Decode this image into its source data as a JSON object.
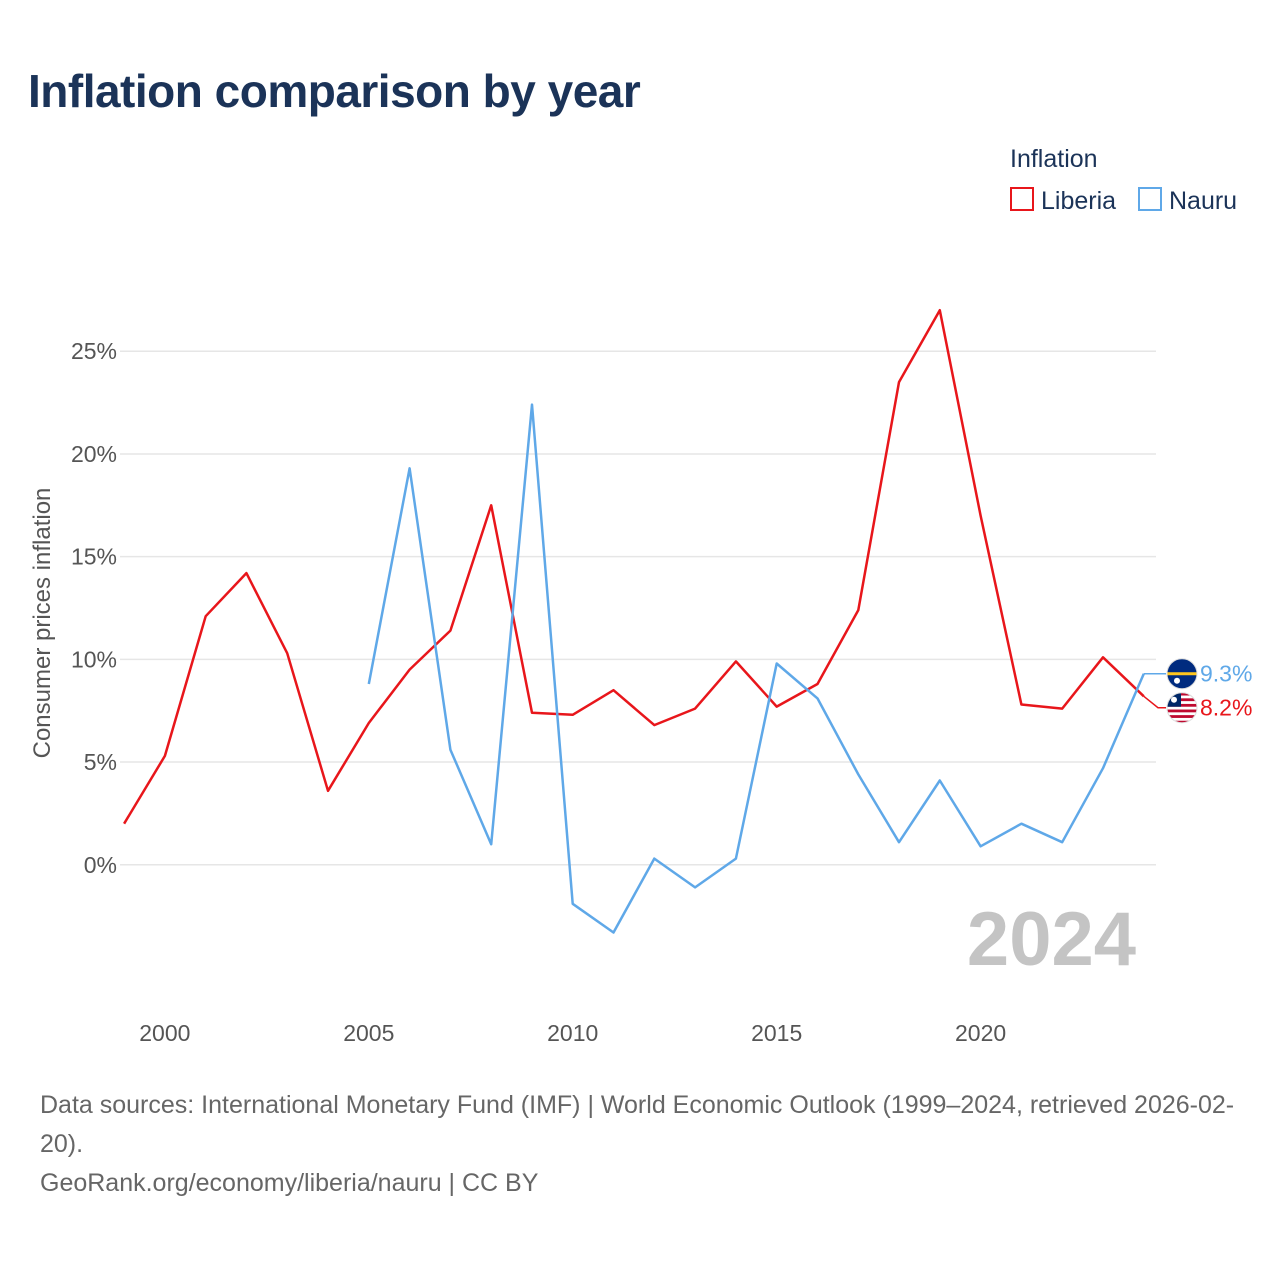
{
  "title": "Inflation comparison by year",
  "chart_data": {
    "type": "line",
    "title": "Inflation comparison by year",
    "xlabel": "",
    "ylabel": "Consumer prices inflation",
    "x": [
      1999,
      2000,
      2001,
      2002,
      2003,
      2004,
      2005,
      2006,
      2007,
      2008,
      2009,
      2010,
      2011,
      2012,
      2013,
      2014,
      2015,
      2016,
      2017,
      2018,
      2019,
      2020,
      2021,
      2022,
      2023,
      2024
    ],
    "xlim": [
      1998.9,
      2024.3
    ],
    "ylim": [
      -6,
      31
    ],
    "x_ticks": [
      2000,
      2005,
      2010,
      2015,
      2020
    ],
    "y_ticks": [
      0,
      5,
      10,
      15,
      20,
      25
    ],
    "y_tick_labels": [
      "0%",
      "5%",
      "10%",
      "15%",
      "20%",
      "25%"
    ],
    "grid": true,
    "legend_title": "Inflation",
    "legend_position": "top-right",
    "year_label": "2024",
    "series": [
      {
        "name": "Liberia",
        "color": "#e8161b",
        "end_label": "8.2%",
        "flag_icon": "liberia-flag-icon",
        "values": [
          2.0,
          5.3,
          12.1,
          14.2,
          10.3,
          3.6,
          6.9,
          9.5,
          11.4,
          17.5,
          7.4,
          7.3,
          8.5,
          6.8,
          7.6,
          9.9,
          7.7,
          8.8,
          12.4,
          23.5,
          27.0,
          17.0,
          7.8,
          7.6,
          10.1,
          8.2
        ]
      },
      {
        "name": "Nauru",
        "color": "#5fa8e8",
        "end_label": "9.3%",
        "flag_icon": "nauru-flag-icon",
        "values": [
          null,
          null,
          null,
          null,
          null,
          null,
          8.8,
          19.3,
          5.6,
          1.0,
          22.4,
          -1.9,
          -3.3,
          0.3,
          -1.1,
          0.3,
          9.8,
          8.1,
          4.4,
          1.1,
          4.1,
          0.9,
          2.0,
          1.1,
          4.7,
          9.3
        ]
      }
    ]
  },
  "sources": {
    "line1": "Data sources: International Monetary Fund (IMF) | World Economic Outlook (1999–2024, retrieved 2026-02-20).",
    "line2": "GeoRank.org/economy/liberia/nauru | CC BY"
  }
}
